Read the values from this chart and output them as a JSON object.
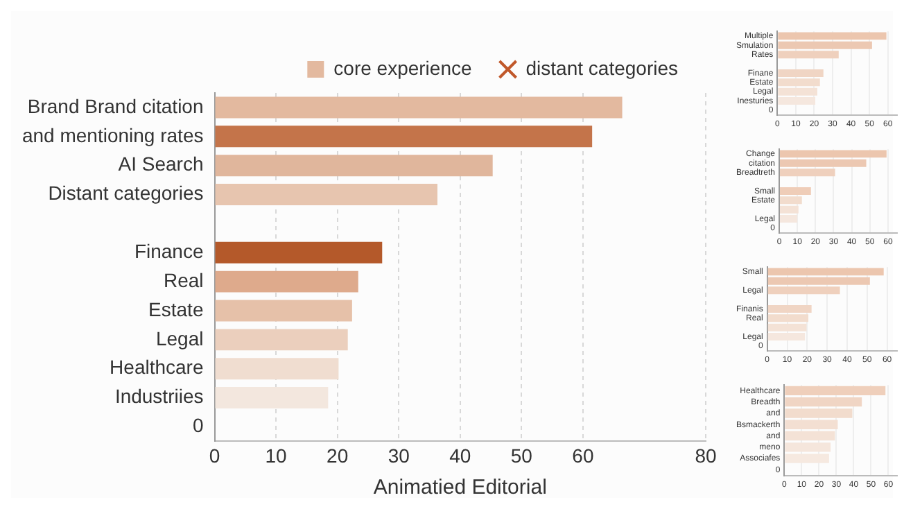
{
  "chart_data": [
    {
      "type": "bar",
      "orientation": "horizontal",
      "xlabel": "Animatied Editorial",
      "categories": [
        "Brand Brand citation",
        "and mentioning rates",
        "AI Search",
        "Distant categories",
        null,
        "Finance",
        "Real",
        "Estate",
        "Legal",
        "Healthcare",
        "Industriies",
        "0"
      ],
      "series": [
        {
          "name": "core experience",
          "color": "#e3b99f",
          "colors": [
            "#e3b99f",
            "#c4744a",
            "#e0b69c",
            "#e7c5af",
            null,
            "#b4592a",
            "#deaa8c",
            "#e6c1a9",
            "#ebcfbd",
            "#f0ddd0",
            "#f3e7de",
            null
          ],
          "values": [
            66.4,
            61.5,
            45.3,
            36.3,
            null,
            27.3,
            23.4,
            22.4,
            21.7,
            20.2,
            18.5,
            null
          ]
        },
        {
          "name": "distant categories",
          "type": "scatter",
          "marker": "cross",
          "color": "#c0582a",
          "values": [
            null,
            null,
            null,
            null,
            null,
            null,
            null,
            null,
            null,
            null,
            null,
            null
          ]
        }
      ],
      "xlim": [
        0,
        80
      ],
      "xticks": [
        0,
        10,
        20,
        30,
        40,
        50,
        60,
        80
      ],
      "grid": "x",
      "legend": "top"
    },
    {
      "type": "bar",
      "orientation": "horizontal",
      "categories": [
        "Multiple",
        "Smulation",
        "Rates",
        null,
        "Finane",
        "Estate",
        "Legal",
        "Inesturies",
        "0"
      ],
      "series": [
        {
          "color": "#ecc8b2",
          "colors": [
            "#ecc6ae",
            "#ecc8b2",
            "#efd0bd",
            null,
            "#f0d5c4",
            "#f2dccd",
            "#f4e2d6",
            "#f5e7de",
            null
          ],
          "values": [
            59.2,
            51.4,
            33.3,
            null,
            25,
            23.1,
            21.7,
            20.6,
            null
          ]
        }
      ],
      "xlim": [
        0,
        65
      ],
      "xticks": [
        0,
        10,
        20,
        30,
        40,
        50,
        60
      ],
      "grid": "x"
    },
    {
      "type": "bar",
      "orientation": "horizontal",
      "categories": [
        "Change",
        "citation",
        "Breadtreth",
        null,
        "Small",
        "Estate",
        null,
        "Legal",
        "0"
      ],
      "series": [
        {
          "color": "#ecc8b2",
          "colors": [
            "#ecc6ae",
            "#ecc8b2",
            "#efd0bd",
            null,
            "#efcdb8",
            "#f2dccd",
            "#f4e2d6",
            "#f5e7de",
            null
          ],
          "values": [
            59.2,
            48,
            30.8,
            null,
            17.5,
            12.5,
            10.6,
            10,
            null
          ]
        }
      ],
      "xlim": [
        0,
        65
      ],
      "xticks": [
        0,
        10,
        20,
        30,
        40,
        50,
        60
      ],
      "grid": "x"
    },
    {
      "type": "bar",
      "orientation": "horizontal",
      "categories": [
        "Small",
        null,
        "Legal",
        null,
        "Finanis",
        "Real",
        null,
        "Legal",
        "0"
      ],
      "series": [
        {
          "color": "#ecc8b2",
          "colors": [
            "#ecc6ae",
            "#ecc8b2",
            "#efd0bd",
            null,
            "#f0d5c4",
            "#f2dccd",
            "#f4e2d6",
            "#f5e7de",
            null
          ],
          "values": [
            58.3,
            51.4,
            36.4,
            null,
            22.2,
            20.6,
            19.7,
            18.9,
            null
          ]
        }
      ],
      "xlim": [
        0,
        65
      ],
      "xticks": [
        0,
        10,
        20,
        30,
        40,
        50,
        60
      ],
      "grid": "x"
    },
    {
      "type": "bar",
      "orientation": "horizontal",
      "categories": [
        "Healthcare",
        "Breadth",
        "and",
        "Bsmackerth",
        "and",
        "meno",
        "Associafes",
        "0"
      ],
      "series": [
        {
          "color": "#f0d5c4",
          "colors": [
            "#efcfbb",
            "#f0d5c4",
            "#f2dccd",
            "#f3dfd2",
            "#f4e2d6",
            "#f5e6dc",
            "#f6e9e0",
            null
          ],
          "values": [
            58.3,
            44.7,
            39.2,
            30.8,
            29.2,
            26.7,
            25.8,
            null
          ]
        }
      ],
      "xlim": [
        0,
        65
      ],
      "xticks": [
        0,
        10,
        20,
        30,
        40,
        50,
        60
      ],
      "grid": "x"
    }
  ]
}
